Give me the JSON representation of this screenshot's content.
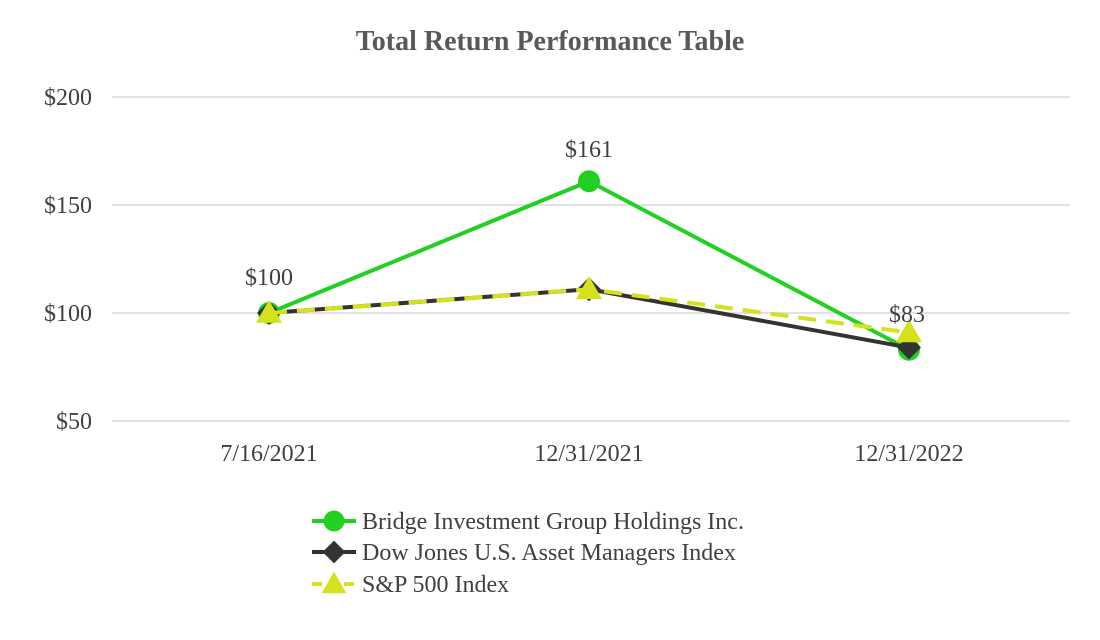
{
  "chart_data": {
    "type": "line",
    "title": "Total Return Performance Table",
    "categories": [
      "7/16/2021",
      "12/31/2021",
      "12/31/2022"
    ],
    "y_ticks": [
      "$200",
      "$150",
      "$100",
      "$50"
    ],
    "y_tick_values": [
      200,
      150,
      100,
      50
    ],
    "ylim": [
      50,
      200
    ],
    "grid": true,
    "legend_position": "bottom",
    "series": [
      {
        "name": "Bridge Investment Group Holdings Inc.",
        "values": [
          100,
          161,
          83
        ],
        "color": "#22d022",
        "marker": "circle",
        "dash": false
      },
      {
        "name": "Dow Jones U.S. Asset Managers Index",
        "values": [
          100,
          111,
          84
        ],
        "color": "#333333",
        "marker": "diamond",
        "dash": false
      },
      {
        "name": "S&P 500 Index",
        "values": [
          100,
          111,
          91
        ],
        "color": "#d4e11c",
        "marker": "triangle",
        "dash": true
      }
    ],
    "data_labels": [
      {
        "series": 0,
        "index": 0,
        "text": "$100"
      },
      {
        "series": 0,
        "index": 1,
        "text": "$161"
      },
      {
        "series": 0,
        "index": 2,
        "text": "$83"
      }
    ]
  }
}
